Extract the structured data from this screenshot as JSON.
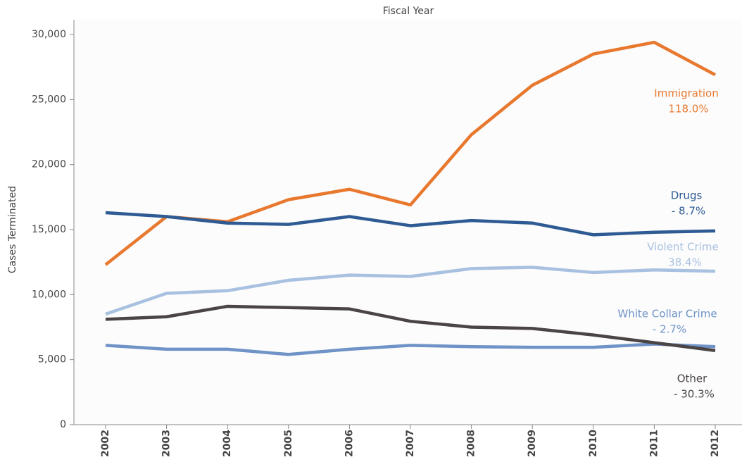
{
  "chart_data": {
    "type": "line",
    "title": "Fiscal Year",
    "y_label": "Cases Terminated",
    "categories": [
      "2002",
      "2003",
      "2004",
      "2005",
      "2006",
      "2007",
      "2008",
      "2009",
      "2010",
      "2011",
      "2012"
    ],
    "ylim": [
      0,
      30000
    ],
    "yticks": [
      0,
      {
        "value": 5000,
        "label": "5,000"
      },
      {
        "value": 10000,
        "label": "10,000"
      },
      {
        "value": 15000,
        "label": "15,000"
      },
      {
        "value": 20000,
        "label": "20,000"
      },
      {
        "value": 25000,
        "label": "25,000"
      },
      {
        "value": 30000,
        "label": "30,000"
      }
    ],
    "series": [
      {
        "name": "Immigration",
        "change": "118.0%",
        "color": "#e8782e",
        "values": [
          12300,
          16000,
          15600,
          17300,
          18100,
          16900,
          22300,
          26100,
          28500,
          29400,
          26900
        ]
      },
      {
        "name": "Drugs",
        "change": "- 8.7%",
        "color": "#2f5b94",
        "values": [
          16300,
          16000,
          15500,
          15400,
          16000,
          15300,
          15700,
          15500,
          14600,
          14800,
          14900
        ]
      },
      {
        "name": "Violent Crime",
        "change": "38.4%",
        "color": "#a9c1e0",
        "values": [
          8500,
          10100,
          10300,
          11100,
          11500,
          11400,
          12000,
          12100,
          11700,
          11900,
          11800
        ]
      },
      {
        "name": "White Collar Crime",
        "change": "- 2.7%",
        "color": "#6f93c7",
        "values": [
          6100,
          5800,
          5800,
          5400,
          5800,
          6100,
          6000,
          5950,
          5950,
          6200,
          6000
        ]
      },
      {
        "name": "Other",
        "change": "- 30.3%",
        "color": "#4a4444",
        "values": [
          8100,
          8300,
          9100,
          9000,
          8900,
          7950,
          7500,
          7400,
          6900,
          6300,
          5700
        ]
      }
    ]
  }
}
